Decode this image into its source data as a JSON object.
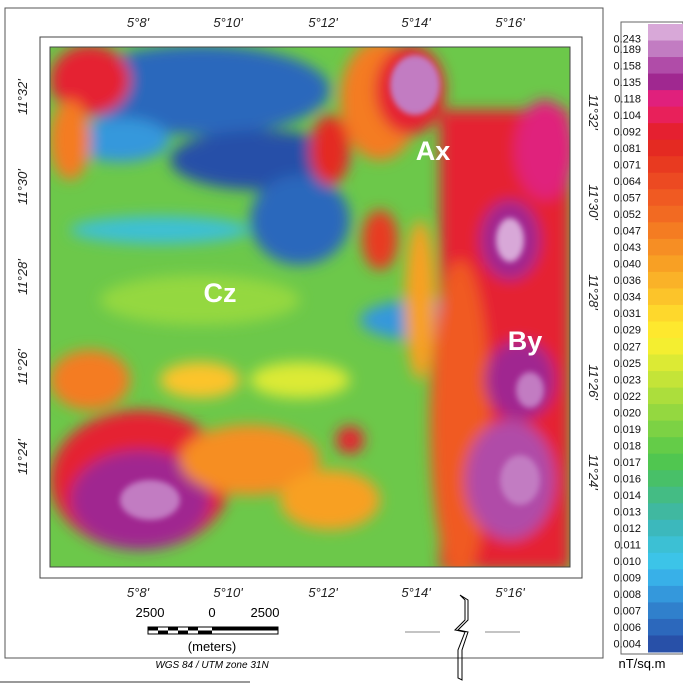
{
  "map": {
    "top_longitudes": [
      "5°8'",
      "5°10'",
      "5°12'",
      "5°14'",
      "5°16'"
    ],
    "bottom_longitudes": [
      "5°8'",
      "5°10'",
      "5°12'",
      "5°14'",
      "5°16'"
    ],
    "left_latitudes": [
      "11°32'",
      "11°30'",
      "11°28'",
      "11°26'",
      "11°24'"
    ],
    "right_latitudes": [
      "11°32'",
      "11°30'",
      "11°28'",
      "11°26'",
      "11°24'"
    ],
    "zones": [
      "Ax",
      "By",
      "Cz"
    ]
  },
  "colorbar": {
    "unit": "nT/sq.m",
    "entries": [
      {
        "label": "0.243",
        "color": "#d8a8d8"
      },
      {
        "label": "0.189",
        "color": "#c27cc2"
      },
      {
        "label": "0.158",
        "color": "#b04ca8"
      },
      {
        "label": "0.135",
        "color": "#a02890"
      },
      {
        "label": "0.118",
        "color": "#e0207c"
      },
      {
        "label": "0.104",
        "color": "#e8205a"
      },
      {
        "label": "0.092",
        "color": "#e52030"
      },
      {
        "label": "0.081",
        "color": "#e42a22"
      },
      {
        "label": "0.071",
        "color": "#e83a20"
      },
      {
        "label": "0.064",
        "color": "#ec4a22"
      },
      {
        "label": "0.057",
        "color": "#f05a22"
      },
      {
        "label": "0.052",
        "color": "#f26a22"
      },
      {
        "label": "0.047",
        "color": "#f47c22"
      },
      {
        "label": "0.043",
        "color": "#f68e24"
      },
      {
        "label": "0.040",
        "color": "#f8a024"
      },
      {
        "label": "0.036",
        "color": "#fab228"
      },
      {
        "label": "0.034",
        "color": "#fcc42a"
      },
      {
        "label": "0.031",
        "color": "#fed82c"
      },
      {
        "label": "0.029",
        "color": "#fee82e"
      },
      {
        "label": "0.027",
        "color": "#f4ee30"
      },
      {
        "label": "0.025",
        "color": "#dcea34"
      },
      {
        "label": "0.023",
        "color": "#c4e438"
      },
      {
        "label": "0.022",
        "color": "#acde3c"
      },
      {
        "label": "0.020",
        "color": "#94d840"
      },
      {
        "label": "0.019",
        "color": "#7cd244"
      },
      {
        "label": "0.018",
        "color": "#64cc48"
      },
      {
        "label": "0.017",
        "color": "#50c650"
      },
      {
        "label": "0.016",
        "color": "#48c068"
      },
      {
        "label": "0.014",
        "color": "#44bc84"
      },
      {
        "label": "0.013",
        "color": "#40b8a0"
      },
      {
        "label": "0.012",
        "color": "#3cb8bc"
      },
      {
        "label": "0.011",
        "color": "#3cc0d4"
      },
      {
        "label": "0.010",
        "color": "#3cc4e8"
      },
      {
        "label": "0.009",
        "color": "#38b0e8"
      },
      {
        "label": "0.008",
        "color": "#3498dc"
      },
      {
        "label": "0.007",
        "color": "#3080cc"
      },
      {
        "label": "0.006",
        "color": "#2c68bc"
      },
      {
        "label": "0.004",
        "color": "#2850a8"
      }
    ]
  },
  "scale_bar": {
    "left": "2500",
    "middle": "0",
    "right": "2500",
    "unit": "(meters)",
    "projection": "WGS 84 / UTM zone 31N"
  }
}
